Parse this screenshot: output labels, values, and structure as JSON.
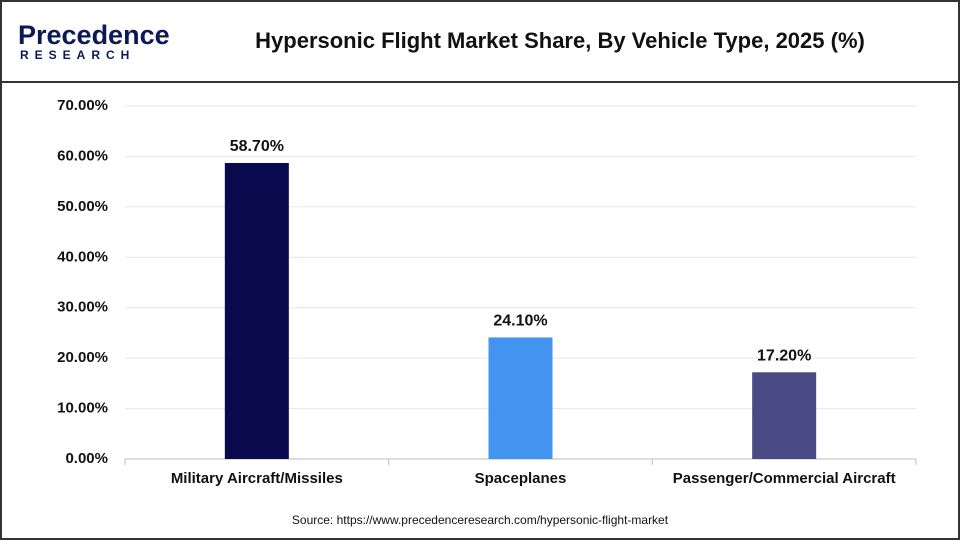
{
  "logo": {
    "name": "Precedence",
    "tagline": "RESEARCH"
  },
  "chart_data": {
    "type": "bar",
    "title": "Hypersonic Flight Market Share, By Vehicle Type, 2025 (%)",
    "categories": [
      "Military Aircraft/Missiles",
      "Spaceplanes",
      "Passenger/Commercial Aircraft"
    ],
    "values": [
      58.7,
      24.1,
      17.2
    ],
    "value_labels": [
      "58.70%",
      "24.10%",
      "17.20%"
    ],
    "colors": [
      "#0a0a4f",
      "#4394f0",
      "#4a4a85"
    ],
    "ylim": [
      0,
      70
    ],
    "yticks": [
      {
        "value": 0,
        "label": "0.00%"
      },
      {
        "value": 10,
        "label": "10.00%"
      },
      {
        "value": 20,
        "label": "20.00%"
      },
      {
        "value": 30,
        "label": "30.00%"
      },
      {
        "value": 40,
        "label": "40.00%"
      },
      {
        "value": 50,
        "label": "50.00%"
      },
      {
        "value": 60,
        "label": "60.00%"
      },
      {
        "value": 70,
        "label": "70.00%"
      }
    ],
    "grid": true,
    "source": "Source: https://www.precedenceresearch.com/hypersonic-flight-market"
  }
}
